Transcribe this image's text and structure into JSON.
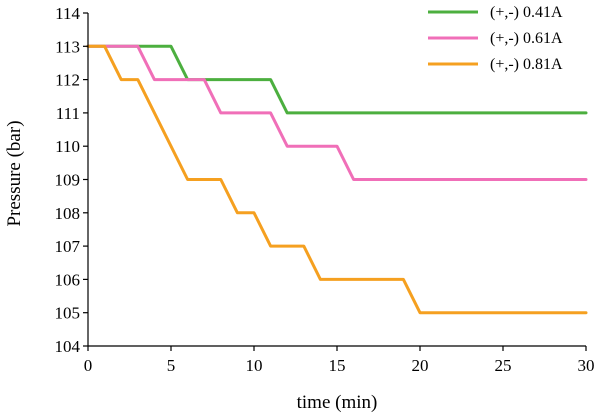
{
  "chart_data": {
    "type": "line",
    "xlabel": "time (min)",
    "ylabel": "Pressure (bar)",
    "xlim": [
      0,
      30
    ],
    "ylim": [
      104,
      114
    ],
    "xticks": [
      0,
      5,
      10,
      15,
      20,
      25,
      30
    ],
    "yticks": [
      104,
      105,
      106,
      107,
      108,
      109,
      110,
      111,
      112,
      113,
      114
    ],
    "grid": false,
    "legend": "top-right",
    "series": [
      {
        "name": "(+,-) 0.41A",
        "color": "#4caf3f",
        "points": [
          [
            0,
            113
          ],
          [
            5,
            113
          ],
          [
            6,
            112
          ],
          [
            11,
            112
          ],
          [
            12,
            111
          ],
          [
            30,
            111
          ]
        ]
      },
      {
        "name": "(+,-) 0.61A",
        "color": "#f06fb8",
        "points": [
          [
            0,
            113
          ],
          [
            3,
            113
          ],
          [
            4,
            112
          ],
          [
            7,
            112
          ],
          [
            8,
            111
          ],
          [
            11,
            111
          ],
          [
            12,
            110
          ],
          [
            15,
            110
          ],
          [
            16,
            109
          ],
          [
            30,
            109
          ]
        ]
      },
      {
        "name": "(+,-) 0.81A",
        "color": "#f5a020",
        "points": [
          [
            0,
            113
          ],
          [
            1,
            113
          ],
          [
            2,
            112
          ],
          [
            3,
            112
          ],
          [
            6,
            109
          ],
          [
            8,
            109
          ],
          [
            9,
            108
          ],
          [
            10,
            108
          ],
          [
            11,
            107
          ],
          [
            13,
            107
          ],
          [
            14,
            106
          ],
          [
            19,
            106
          ],
          [
            20,
            105
          ],
          [
            30,
            105
          ]
        ]
      }
    ]
  }
}
